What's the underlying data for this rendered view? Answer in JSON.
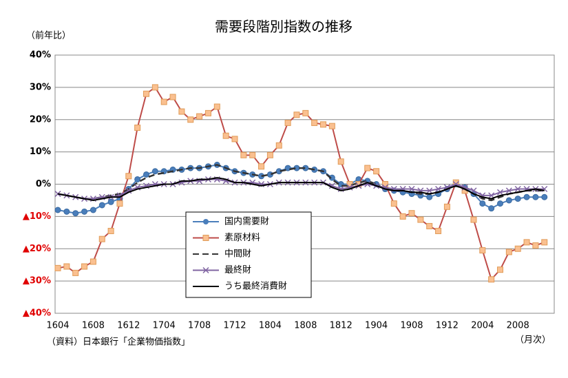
{
  "chart_data": {
    "type": "line",
    "title": "需要段階別指数の推移",
    "y_label": "（前年比）",
    "x_label": "（月次）",
    "source": "（資料）日本銀行「企業物価指数」",
    "categories": [
      "1604",
      null,
      null,
      null,
      "1608",
      null,
      null,
      null,
      "1612",
      null,
      null,
      null,
      "1704",
      null,
      null,
      null,
      "1708",
      null,
      null,
      null,
      "1712",
      null,
      null,
      null,
      "1804",
      null,
      null,
      null,
      "1808",
      null,
      null,
      null,
      "1812",
      null,
      null,
      null,
      "1904",
      null,
      null,
      null,
      "1908",
      null,
      null,
      null,
      "1912",
      null,
      null,
      null,
      "2004",
      null,
      null,
      null,
      "2008",
      null,
      null,
      null
    ],
    "ylim": [
      -40,
      40
    ],
    "yticks": [
      {
        "value": -40,
        "label": "▲40%"
      },
      {
        "value": -30,
        "label": "▲30%"
      },
      {
        "value": -20,
        "label": "▲20%"
      },
      {
        "value": -10,
        "label": "▲10%"
      },
      {
        "value": 0,
        "label": "0%"
      },
      {
        "value": 10,
        "label": "10%"
      },
      {
        "value": 20,
        "label": "20%"
      },
      {
        "value": 30,
        "label": "30%"
      },
      {
        "value": 40,
        "label": "40%"
      }
    ],
    "grid": true,
    "series": [
      {
        "name": "国内需要財",
        "color": "#4a7ebb",
        "marker": "circle",
        "values": [
          -8,
          -8.5,
          -9,
          -8.5,
          -8,
          -6.5,
          -5.5,
          -4.5,
          -1.5,
          1.5,
          3,
          4,
          4,
          4.5,
          4.5,
          5,
          5,
          5.5,
          6,
          5,
          4,
          3.5,
          3,
          2.5,
          3,
          4,
          5,
          5,
          5,
          4.5,
          4,
          2,
          0,
          0,
          1.5,
          1,
          0,
          -1.5,
          -2,
          -2.5,
          -3,
          -3.5,
          -4,
          -3,
          -1.5,
          0,
          -1,
          -3,
          -6,
          -7.5,
          -6,
          -5,
          -4.5,
          -4,
          -4,
          -4
        ]
      },
      {
        "name": "素原材料",
        "color": "#be4b48",
        "marker": "square",
        "values": [
          -26,
          -25.5,
          -27.5,
          -25.5,
          -24,
          -17,
          -14.5,
          -6,
          2.5,
          17.5,
          28,
          30,
          25.5,
          27,
          22.5,
          20,
          21,
          22,
          24,
          15,
          14,
          9,
          9,
          5.5,
          9,
          12,
          19,
          21.5,
          22,
          19,
          18.5,
          18,
          7,
          0,
          0,
          5,
          4,
          0,
          -6,
          -10,
          -9,
          -11,
          -13,
          -14.5,
          -7,
          0.5,
          -2,
          -11,
          -20.5,
          -29.5,
          -26.5,
          -21,
          -20,
          -18,
          -19,
          -18
        ]
      },
      {
        "name": "中間財",
        "color": "#333333",
        "dash": true,
        "values": [
          -3,
          -3.5,
          -4,
          -4.5,
          -4.5,
          -4,
          -3.5,
          -3,
          -1.5,
          0.5,
          2,
          3,
          3.5,
          4,
          4.5,
          5,
          5,
          5.5,
          6,
          5,
          4,
          3.5,
          3,
          2.5,
          3,
          4,
          4.5,
          5,
          5,
          4.5,
          4,
          1.5,
          -0.5,
          -0.5,
          0.5,
          1,
          0,
          -1.5,
          -2,
          -2,
          -2.5,
          -3,
          -3,
          -2.5,
          -1.5,
          -0.5,
          -1.5,
          -3,
          -4.5,
          -5,
          -4,
          -3,
          -2.5,
          -2,
          -2,
          -2
        ]
      },
      {
        "name": "最終財",
        "color": "#8064a2",
        "marker": "x",
        "values": [
          -3,
          -3.5,
          -4,
          -4.5,
          -4.5,
          -4,
          -4,
          -3.5,
          -2,
          -1,
          -0.5,
          0,
          0,
          0,
          0.5,
          1,
          1,
          1.5,
          1.5,
          1,
          0.5,
          0.5,
          0.5,
          0,
          0,
          0.5,
          0.5,
          0.5,
          0.5,
          0.5,
          0.5,
          -0.5,
          -1.5,
          -1,
          -0.5,
          0,
          -0.5,
          -1,
          -1.5,
          -1.5,
          -1.5,
          -2,
          -2,
          -1.5,
          -1,
          0,
          -1,
          -2,
          -3.5,
          -3.5,
          -2.5,
          -2,
          -1.5,
          -1.5,
          -1.5,
          -1.5
        ]
      },
      {
        "name": "うち最終消費財",
        "color": "#000000",
        "values": [
          -3,
          -3.5,
          -4,
          -4.5,
          -5,
          -4.5,
          -4,
          -4,
          -2.5,
          -1.5,
          -1,
          -0.5,
          0,
          0,
          1,
          1,
          1.5,
          1.5,
          2,
          1.5,
          0.5,
          0.5,
          0,
          -0.5,
          0,
          0.5,
          0.5,
          0.5,
          0.5,
          0.5,
          0.5,
          -1,
          -2,
          -1.5,
          -0.5,
          0.5,
          -0.5,
          -1.5,
          -2,
          -2,
          -2.5,
          -2.5,
          -3,
          -2.5,
          -1.5,
          -0.5,
          -1.5,
          -3,
          -4,
          -4.5,
          -3.5,
          -3,
          -2.5,
          -2,
          -1.5,
          -2
        ]
      }
    ]
  }
}
